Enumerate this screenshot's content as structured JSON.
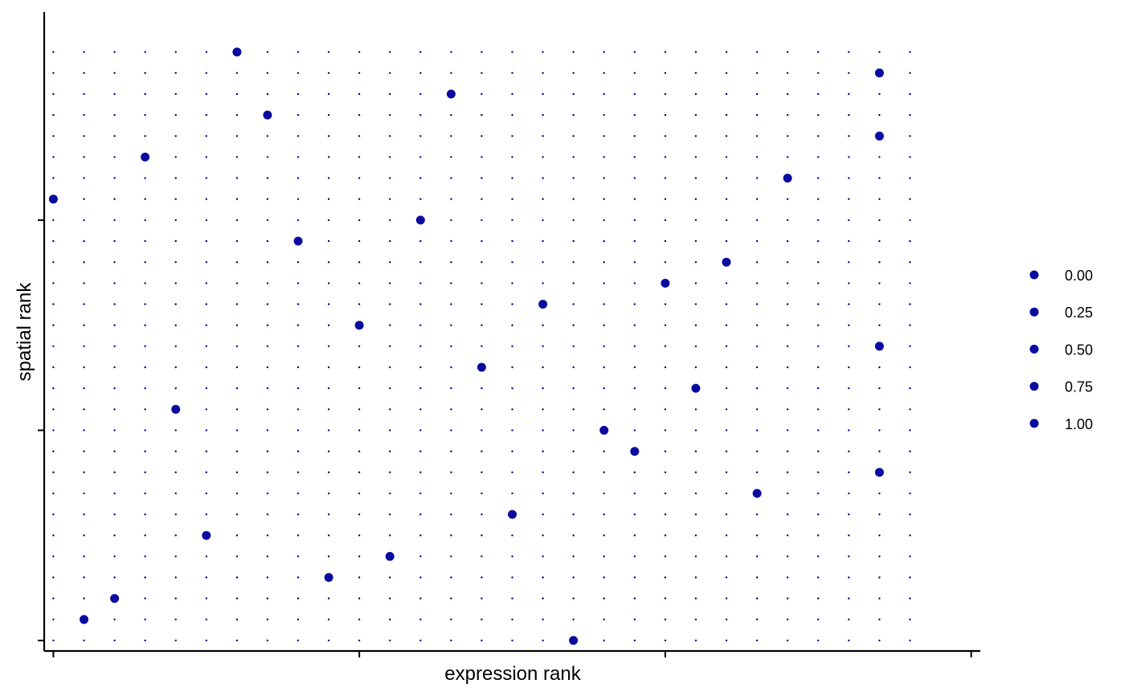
{
  "chart_data": {
    "type": "scatter",
    "xlabel": "expression rank",
    "ylabel": "spatial rank",
    "xlim": [
      0.7,
      31.3
    ],
    "ylim": [
      0.5,
      30.9
    ],
    "x_ticks": [
      1,
      11,
      21,
      31
    ],
    "y_ticks": [
      1,
      11,
      21
    ],
    "x_tick_labels_shown": false,
    "y_tick_labels_shown": false,
    "grid": false,
    "legend_position": "right",
    "background_grid_points": {
      "x_range": [
        1,
        29
      ],
      "y_range": [
        1,
        29
      ],
      "color": "#00008B"
    },
    "points": [
      {
        "x": 1,
        "y": 22
      },
      {
        "x": 2,
        "y": 2
      },
      {
        "x": 3,
        "y": 3
      },
      {
        "x": 4,
        "y": 24
      },
      {
        "x": 5,
        "y": 12
      },
      {
        "x": 6,
        "y": 6
      },
      {
        "x": 7,
        "y": 29
      },
      {
        "x": 8,
        "y": 26
      },
      {
        "x": 9,
        "y": 20
      },
      {
        "x": 10,
        "y": 4
      },
      {
        "x": 11,
        "y": 16
      },
      {
        "x": 12,
        "y": 5
      },
      {
        "x": 13,
        "y": 21
      },
      {
        "x": 14,
        "y": 27
      },
      {
        "x": 15,
        "y": 14
      },
      {
        "x": 16,
        "y": 7
      },
      {
        "x": 17,
        "y": 17
      },
      {
        "x": 18,
        "y": 1
      },
      {
        "x": 19,
        "y": 11
      },
      {
        "x": 20,
        "y": 10
      },
      {
        "x": 21,
        "y": 18
      },
      {
        "x": 22,
        "y": 13
      },
      {
        "x": 23,
        "y": 19
      },
      {
        "x": 24,
        "y": 8
      },
      {
        "x": 25,
        "y": 23
      },
      {
        "x": 28,
        "y": 28
      },
      {
        "x": 28,
        "y": 25
      },
      {
        "x": 28,
        "y": 15
      },
      {
        "x": 28,
        "y": 9
      }
    ],
    "point_color": "#0A0AA0",
    "legend": {
      "entries": [
        "0.00",
        "0.25",
        "0.50",
        "0.75",
        "1.00"
      ],
      "color": "#0A0AA0"
    }
  }
}
